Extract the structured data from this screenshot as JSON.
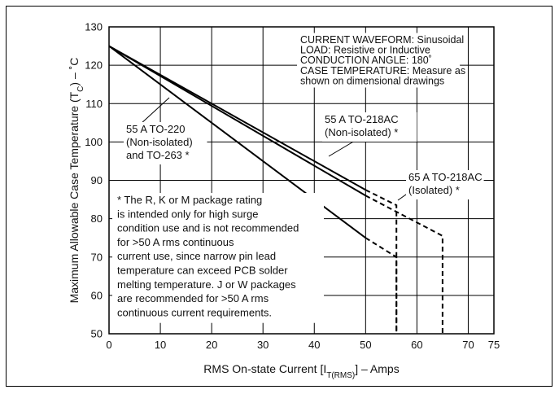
{
  "chart_data": {
    "type": "line",
    "xlabel_parts": [
      "RMS On-state Current [I",
      "T(RMS)",
      "] – Amps"
    ],
    "ylabel_parts": [
      "Maximum Allowable Case Temperature (T",
      "C",
      ") – ˚C"
    ],
    "xlim": [
      0,
      75
    ],
    "ylim": [
      50,
      130
    ],
    "xticks": [
      0,
      10,
      20,
      30,
      40,
      50,
      60,
      70,
      75
    ],
    "yticks": [
      50,
      60,
      70,
      80,
      90,
      100,
      110,
      120,
      130
    ],
    "grid": true,
    "series": [
      {
        "name": "55 A TO-220 (Non-isolated) and TO-263 *",
        "solid": [
          [
            0,
            125
          ],
          [
            50,
            75
          ]
        ],
        "dashed": [
          [
            50,
            75
          ],
          [
            56,
            70
          ],
          [
            56,
            50
          ]
        ]
      },
      {
        "name": "55 A TO-218AC (Non-isolated) *",
        "solid": [
          [
            0,
            125
          ],
          [
            50,
            87.5
          ]
        ],
        "dashed": [
          [
            50,
            87.5
          ],
          [
            56,
            83.5
          ],
          [
            56,
            50
          ]
        ]
      },
      {
        "name": "65 A TO-218AC (Isolated) *",
        "solid": [
          [
            0,
            125
          ],
          [
            50,
            86
          ]
        ],
        "dashed": [
          [
            50,
            86
          ],
          [
            65,
            75.5
          ],
          [
            65,
            50
          ]
        ]
      }
    ],
    "annotations": {
      "conditions": [
        "CURRENT WAVEFORM: Sinusoidal",
        "LOAD: Resistive or Inductive",
        "CONDUCTION ANGLE: 180˚",
        "CASE TEMPERATURE: Measure as",
        "shown on dimensional drawings"
      ],
      "label_to220": [
        "55 A TO-220",
        "(Non-isolated)",
        "and TO-263 *"
      ],
      "label_to218_nonisolated": [
        "55 A TO-218AC",
        "(Non-isolated) *"
      ],
      "label_to218_isolated": [
        "65 A TO-218AC",
        "(Isolated) *"
      ],
      "footnote": [
        "* The R, K or M package rating",
        "is intended only for high surge",
        "condition use and is not recommended",
        "for >50 A rms continuous",
        "current use, since narrow pin lead",
        "temperature can exceed PCB solder",
        "melting temperature. J or W packages",
        "are recommended for >50 A rms",
        "continuous current requirements."
      ]
    }
  }
}
